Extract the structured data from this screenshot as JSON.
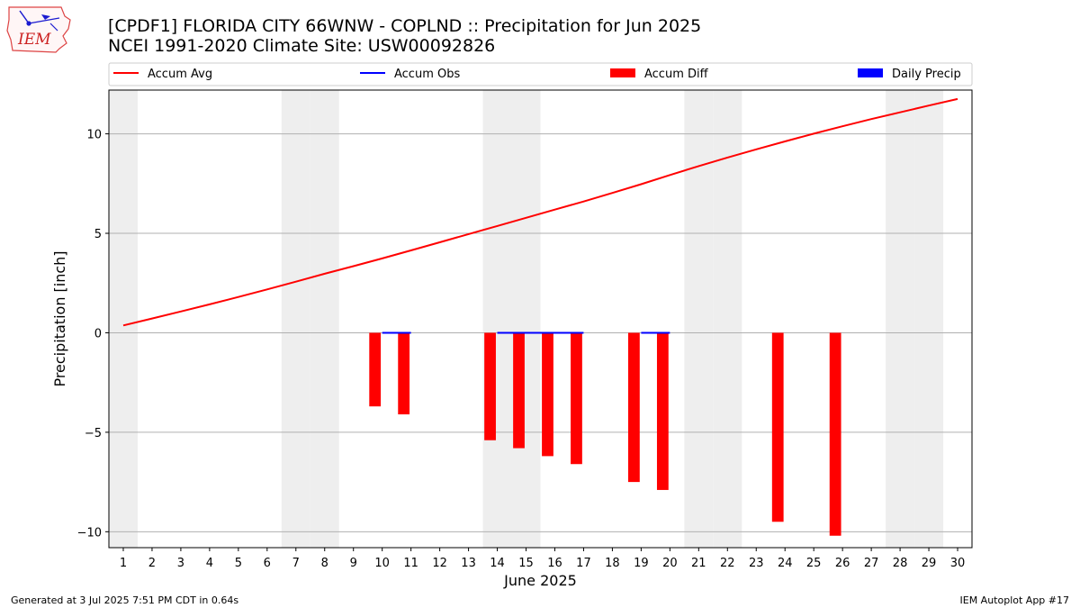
{
  "header": {
    "title_line1": "[CPDF1] FLORIDA CITY 66WNW - COPLND :: Precipitation for Jun 2025",
    "title_line2": "NCEI 1991-2020 Climate Site: USW00092826",
    "logo_text": "IEM"
  },
  "footer": {
    "generated": "Generated at 3 Jul 2025 7:51 PM CDT in 0.64s",
    "app": "IEM Autoplot App #17"
  },
  "colors": {
    "accum_avg": "#ff0000",
    "accum_obs": "#0000ff",
    "accum_diff": "#ff0000",
    "daily_precip": "#0000ff",
    "weekend_shade": "#eeeeee",
    "grid": "#b0b0b0"
  },
  "chart_data": {
    "type": "bar",
    "xlabel": "June 2025",
    "ylabel": "Precipitation [inch]",
    "xlim": [
      0.5,
      30.5
    ],
    "ylim": [
      -10.8,
      12.2
    ],
    "yticks": [
      -10,
      -5,
      0,
      5,
      10
    ],
    "ytick_labels": [
      "−10",
      "−5",
      "0",
      "5",
      "10"
    ],
    "x": [
      1,
      2,
      3,
      4,
      5,
      6,
      7,
      8,
      9,
      10,
      11,
      12,
      13,
      14,
      15,
      16,
      17,
      18,
      19,
      20,
      21,
      22,
      23,
      24,
      25,
      26,
      27,
      28,
      29,
      30
    ],
    "legend_position": "top",
    "legend": [
      "Accum Avg",
      "Accum Obs",
      "Accum Diff",
      "Daily Precip"
    ],
    "grid": "horizontal",
    "weekend_days": [
      1,
      7,
      8,
      14,
      15,
      21,
      22,
      28,
      29
    ],
    "series": [
      {
        "name": "Accum Avg",
        "type": "line",
        "x": [
          1,
          2,
          3,
          4,
          5,
          6,
          7,
          8,
          9,
          10,
          11,
          12,
          13,
          14,
          15,
          16,
          17,
          18,
          19,
          20,
          21,
          22,
          23,
          24,
          25,
          26,
          27,
          28,
          29,
          30
        ],
        "values": [
          0.37,
          0.72,
          1.07,
          1.43,
          1.8,
          2.18,
          2.57,
          2.97,
          3.35,
          3.74,
          4.14,
          4.55,
          4.96,
          5.37,
          5.78,
          6.19,
          6.6,
          7.03,
          7.47,
          7.93,
          8.38,
          8.81,
          9.22,
          9.62,
          10.01,
          10.38,
          10.74,
          11.08,
          11.42,
          11.75
        ]
      },
      {
        "name": "Accum Obs",
        "type": "line",
        "segments": [
          [
            10,
            11
          ],
          [
            14,
            17
          ],
          [
            19,
            20
          ]
        ],
        "value": 0
      },
      {
        "name": "Accum Diff",
        "type": "bar",
        "x": [
          10,
          11,
          14,
          15,
          16,
          17,
          19,
          20,
          24,
          26
        ],
        "values": [
          -3.7,
          -4.1,
          -5.4,
          -5.8,
          -6.2,
          -6.6,
          -7.5,
          -7.9,
          -9.5,
          -10.2
        ]
      },
      {
        "name": "Daily Precip",
        "type": "bar",
        "x": [],
        "values": []
      }
    ]
  }
}
